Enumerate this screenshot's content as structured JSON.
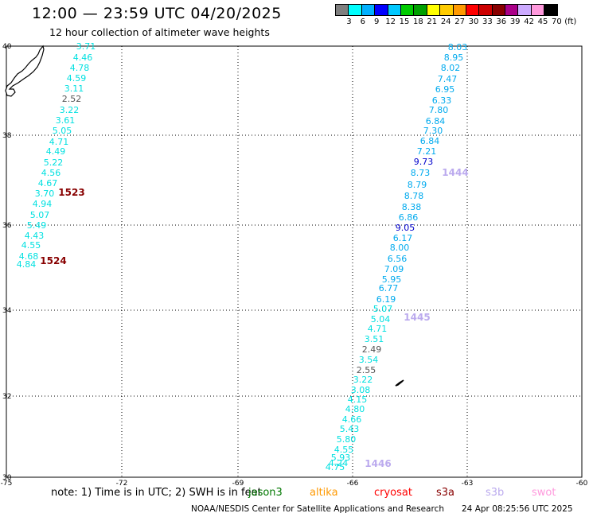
{
  "header": {
    "title": "12:00 — 23:59 UTC 04/20/2025",
    "subtitle": "12 hour collection of altimeter wave heights"
  },
  "colorbar": {
    "colors": [
      "#7f7f7f",
      "#00ffff",
      "#00b0ff",
      "#0000ff",
      "#00c8ff",
      "#00cc00",
      "#00a000",
      "#ffff00",
      "#ffcc00",
      "#ff9900",
      "#ff0000",
      "#cc0000",
      "#880000",
      "#aa0088",
      "#ccaaff",
      "#ff99dd",
      "#000000"
    ],
    "ticks": [
      "3",
      "6",
      "9",
      "12",
      "15",
      "18",
      "21",
      "24",
      "27",
      "30",
      "33",
      "36",
      "39",
      "42",
      "45",
      "70",
      "(ft)"
    ]
  },
  "map": {
    "lon_ticks": [
      "-75",
      "-72",
      "-69",
      "-66",
      "-63",
      "-60"
    ],
    "lat_ticks": [
      "40",
      "38",
      "36",
      "34",
      "32",
      "30"
    ],
    "track_a": {
      "values": [
        "3.71",
        "4.46",
        "4.78",
        "4.59",
        "3.11",
        "2.52",
        "3.22",
        "3.61",
        "5.05",
        "4.71",
        "4.49",
        "5.22",
        "4.56",
        "4.67",
        "3.70",
        "4.94",
        "5.07",
        "5.49",
        "4.43",
        "4.55",
        "4.68",
        "4.84"
      ],
      "colors": [
        "c",
        "c",
        "c",
        "c",
        "c",
        "g",
        "c",
        "c",
        "c",
        "c",
        "c",
        "c",
        "c",
        "c",
        "c",
        "c",
        "c",
        "c",
        "c",
        "c",
        "c",
        "c"
      ],
      "pass_labels": [
        "1523",
        "1524"
      ]
    },
    "track_b": {
      "values": [
        "8.03",
        "8.95",
        "8.02",
        "7.47",
        "6.95",
        "6.33",
        "7.80",
        "6.84",
        "7.30",
        "6.84",
        "7.21",
        "9.73",
        "8.73",
        "8.79",
        "8.78",
        "8.38",
        "6.86",
        "9.05",
        "6.17",
        "8.00",
        "6.56",
        "7.09",
        "5.95",
        "6.77",
        "6.19",
        "5.07",
        "5.04",
        "4.71",
        "3.51",
        "2.49",
        "3.54",
        "2.55",
        "3.22",
        "3.08",
        "4.15",
        "4.80",
        "4.66",
        "5.43",
        "5.80",
        "4.55",
        "5.93",
        "4.24",
        "4.75"
      ],
      "colors": [
        "b",
        "b",
        "b",
        "b",
        "b",
        "b",
        "b",
        "b",
        "b",
        "b",
        "b",
        "d",
        "b",
        "b",
        "b",
        "b",
        "b",
        "d",
        "b",
        "b",
        "b",
        "b",
        "b",
        "b",
        "b",
        "c",
        "c",
        "c",
        "c",
        "g",
        "c",
        "g",
        "c",
        "c",
        "c",
        "c",
        "c",
        "c",
        "c",
        "c",
        "c",
        "c",
        "c"
      ],
      "pass_labels": [
        "1444",
        "1445",
        "1446"
      ]
    }
  },
  "footer": {
    "note": "note:  1) Time is in UTC;  2) SWH is in feet",
    "satellites": [
      {
        "name": "jason3",
        "color": "#007700"
      },
      {
        "name": "altika",
        "color": "#ff9900"
      },
      {
        "name": "cryosat",
        "color": "#ff0000"
      },
      {
        "name": "s3a",
        "color": "#880000"
      },
      {
        "name": "s3b",
        "color": "#bbaaee"
      },
      {
        "name": "swot",
        "color": "#ff99dd"
      }
    ],
    "credit": "NOAA/NESDIS Center for Satellite Applications and Research",
    "timestamp": "24 Apr 08:25:56 UTC 2025"
  },
  "palette": {
    "c": "#00e0e0",
    "b": "#00aaee",
    "d": "#0000cc",
    "g": "#555555",
    "pass_a": "#880000",
    "pass_b": "#bbaaee"
  }
}
